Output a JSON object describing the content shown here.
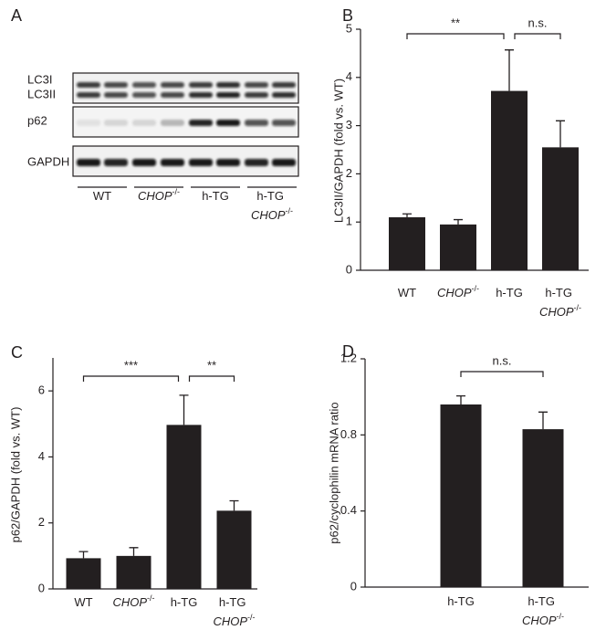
{
  "blot": {
    "panel_label": "A",
    "rows": [
      "LC3I",
      "LC3II",
      "p62",
      "GAPDH"
    ],
    "groups": [
      "WT",
      "CHOP-/-",
      "h-TG",
      "h-TG CHOP-/-"
    ]
  },
  "chart_data": [
    {
      "type": "bar",
      "panel_label": "B",
      "ylabel": "LC3II/GAPDH (fold vs. WT)",
      "categories": [
        "WT",
        "CHOP-/-",
        "h-TG",
        "h-TG CHOP-/-"
      ],
      "values": [
        1.1,
        0.95,
        3.72,
        2.55
      ],
      "errors": [
        0.07,
        0.1,
        0.85,
        0.55
      ],
      "color": "#231f20",
      "ylim": [
        0,
        5
      ],
      "yticks": [
        0,
        1,
        2,
        3,
        4,
        5
      ],
      "annotations": [
        "**",
        "n.s."
      ]
    },
    {
      "type": "bar",
      "panel_label": "C",
      "ylabel": "p62/GAPDH (fold vs. WT)",
      "categories": [
        "WT",
        "CHOP-/-",
        "h-TG",
        "h-TG CHOP-/-"
      ],
      "values": [
        0.93,
        1.0,
        4.97,
        2.37
      ],
      "errors": [
        0.2,
        0.25,
        0.9,
        0.3
      ],
      "color": "#231f20",
      "ylim": [
        0,
        7
      ],
      "yticks": [
        0,
        2,
        4,
        6
      ],
      "annotations": [
        "***",
        "**"
      ]
    },
    {
      "type": "bar",
      "panel_label": "D",
      "ylabel": "p62/cyclophilin mRNA ratio",
      "categories": [
        "h-TG",
        "h-TG CHOP-/-"
      ],
      "values": [
        0.96,
        0.83
      ],
      "errors": [
        0.045,
        0.09
      ],
      "color": "#231f20",
      "ylim": [
        0,
        1.2
      ],
      "yticks": [
        0,
        0.4,
        0.8,
        1.2
      ],
      "annotations": [
        "n.s."
      ]
    }
  ]
}
